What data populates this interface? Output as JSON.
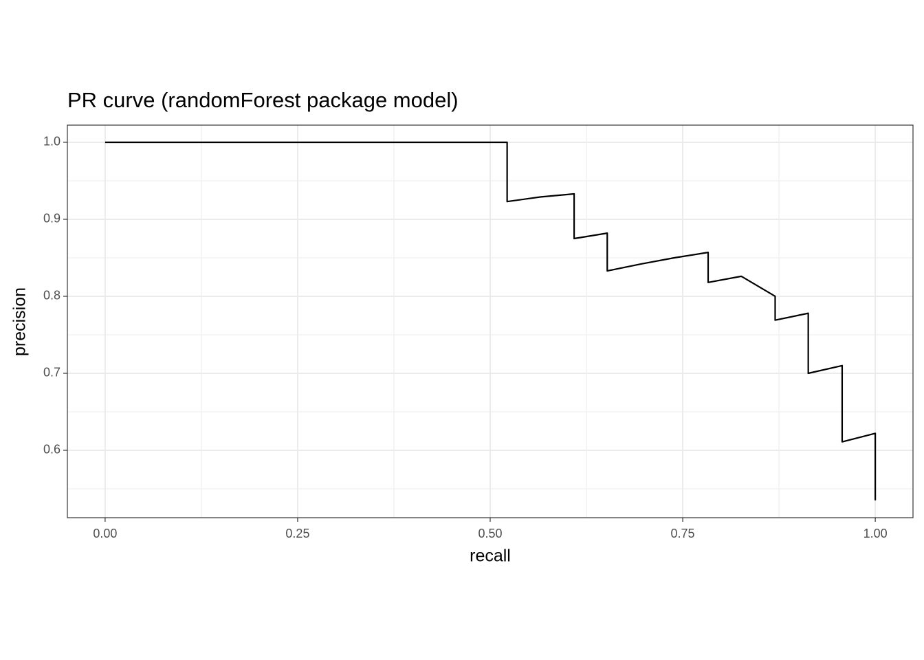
{
  "chart_data": {
    "type": "line",
    "title": "PR curve (randomForest package model)",
    "x_label": "recall",
    "y_label": "precision",
    "x": [
      0,
      0.522,
      0.522,
      0.565,
      0.609,
      0.609,
      0.652,
      0.652,
      0.696,
      0.739,
      0.783,
      0.783,
      0.826,
      0.87,
      0.87,
      0.913,
      0.913,
      0.957,
      0.957,
      1,
      1
    ],
    "series": [
      {
        "name": "PR curve",
        "color": "#000000",
        "values": [
          1,
          1,
          0.923,
          0.929,
          0.933,
          0.875,
          0.882,
          0.833,
          0.842,
          0.85,
          0.857,
          0.818,
          0.826,
          0.8,
          0.769,
          0.778,
          0.7,
          0.71,
          0.611,
          0.622,
          0.535
        ]
      }
    ],
    "xlim": [
      -0.049,
      1.049
    ],
    "ylim": [
      0.5125,
      1.0223
    ],
    "xticks": [
      {
        "value": 0,
        "label": "0.00"
      },
      {
        "value": 0.25,
        "label": "0.25"
      },
      {
        "value": 0.5,
        "label": "0.50"
      },
      {
        "value": 0.75,
        "label": "0.75"
      },
      {
        "value": 1,
        "label": "1.00"
      }
    ],
    "yticks": [
      0.6,
      0.7,
      0.8,
      0.9,
      {
        "value": 1,
        "label": "1.0"
      }
    ],
    "xminorticks": [
      0.125,
      0.375,
      0.625,
      0.875
    ],
    "yminorticks": [
      0.55,
      0.65,
      0.75,
      0.85,
      0.95
    ],
    "grid": true
  }
}
